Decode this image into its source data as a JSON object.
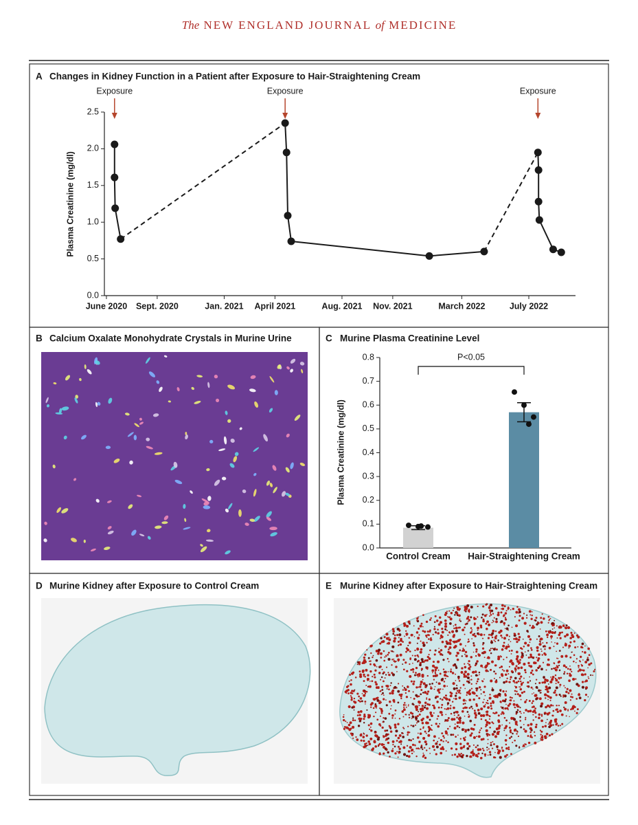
{
  "header": {
    "the": "The",
    "name_a": "NEW ENGLAND JOURNAL",
    "of": "of",
    "name_b": "MEDICINE"
  },
  "chart_data": [
    {
      "type": "line",
      "panel": "A",
      "title": "Changes in Kidney Function in a Patient after Exposure to Hair-Straightening Cream",
      "ylabel": "Plasma Creatinine (mg/dl)",
      "x": [
        2020.46,
        2020.46,
        2020.463,
        2020.49,
        2021.3,
        2021.307,
        2021.313,
        2021.33,
        2022.01,
        2022.28,
        2022.545,
        2022.548,
        2022.548,
        2022.552,
        2022.62,
        2022.66
      ],
      "values": [
        2.06,
        1.61,
        1.19,
        0.77,
        2.35,
        1.95,
        1.09,
        0.74,
        0.54,
        0.6,
        1.95,
        1.71,
        1.28,
        1.03,
        0.63,
        0.59
      ],
      "dashed_segments": [
        3,
        9
      ],
      "color": "#1a1a1a",
      "xlim": [
        2020.41,
        2022.73
      ],
      "xticks": [
        {
          "value": 2020.42,
          "label": "June 2020"
        },
        {
          "value": 2020.67,
          "label": "Sept. 2020"
        },
        {
          "value": 2021.0,
          "label": "Jan. 2021"
        },
        {
          "value": 2021.25,
          "label": "April 2021"
        },
        {
          "value": 2021.58,
          "label": "Aug. 2021"
        },
        {
          "value": 2021.83,
          "label": "Nov. 2021"
        },
        {
          "value": 2022.17,
          "label": "March 2022"
        },
        {
          "value": 2022.5,
          "label": "July 2022"
        }
      ],
      "ylim": [
        0,
        2.5
      ],
      "yticks": [
        {
          "value": 0,
          "label": "0.0"
        },
        0.5,
        {
          "value": 1,
          "label": "1.0"
        },
        1.5,
        {
          "value": 2,
          "label": "2.0"
        },
        2.5
      ],
      "annotations": [
        {
          "x": 2020.46,
          "text": "Exposure"
        },
        {
          "x": 2021.3,
          "text": "Exposure"
        },
        {
          "x": 2022.545,
          "text": "Exposure"
        }
      ],
      "annotation_color": "#b5452c"
    },
    {
      "type": "bar",
      "panel": "C",
      "title": "Murine Plasma Creatinine Level",
      "ylabel": "Plasma Creatinine (mg/dl)",
      "categories": [
        "Control Cream",
        "Hair-Straightening Cream"
      ],
      "values": [
        0.085,
        0.57
      ],
      "errors": [
        0.008,
        0.04
      ],
      "points": [
        [
          0.095,
          0.09,
          0.088,
          0.092
        ],
        [
          0.655,
          0.6,
          0.55,
          0.52
        ]
      ],
      "colors": [
        "#d2d2d2",
        "#5b8ca4"
      ],
      "ylim": [
        0,
        0.8
      ],
      "yticks": [
        {
          "value": 0,
          "label": "0.0"
        },
        0.1,
        0.2,
        0.3,
        0.4,
        0.5,
        0.6,
        0.7,
        0.8
      ],
      "significance": "P<0.05"
    }
  ],
  "panels": {
    "B": {
      "label": "B",
      "title": "Calcium Oxalate Monohydrate Crystals in Murine Urine"
    },
    "D": {
      "label": "D",
      "title": "Murine Kidney after Exposure to Control Cream"
    },
    "E": {
      "label": "E",
      "title": "Murine Kidney after Exposure to Hair-Straightening Cream"
    }
  }
}
